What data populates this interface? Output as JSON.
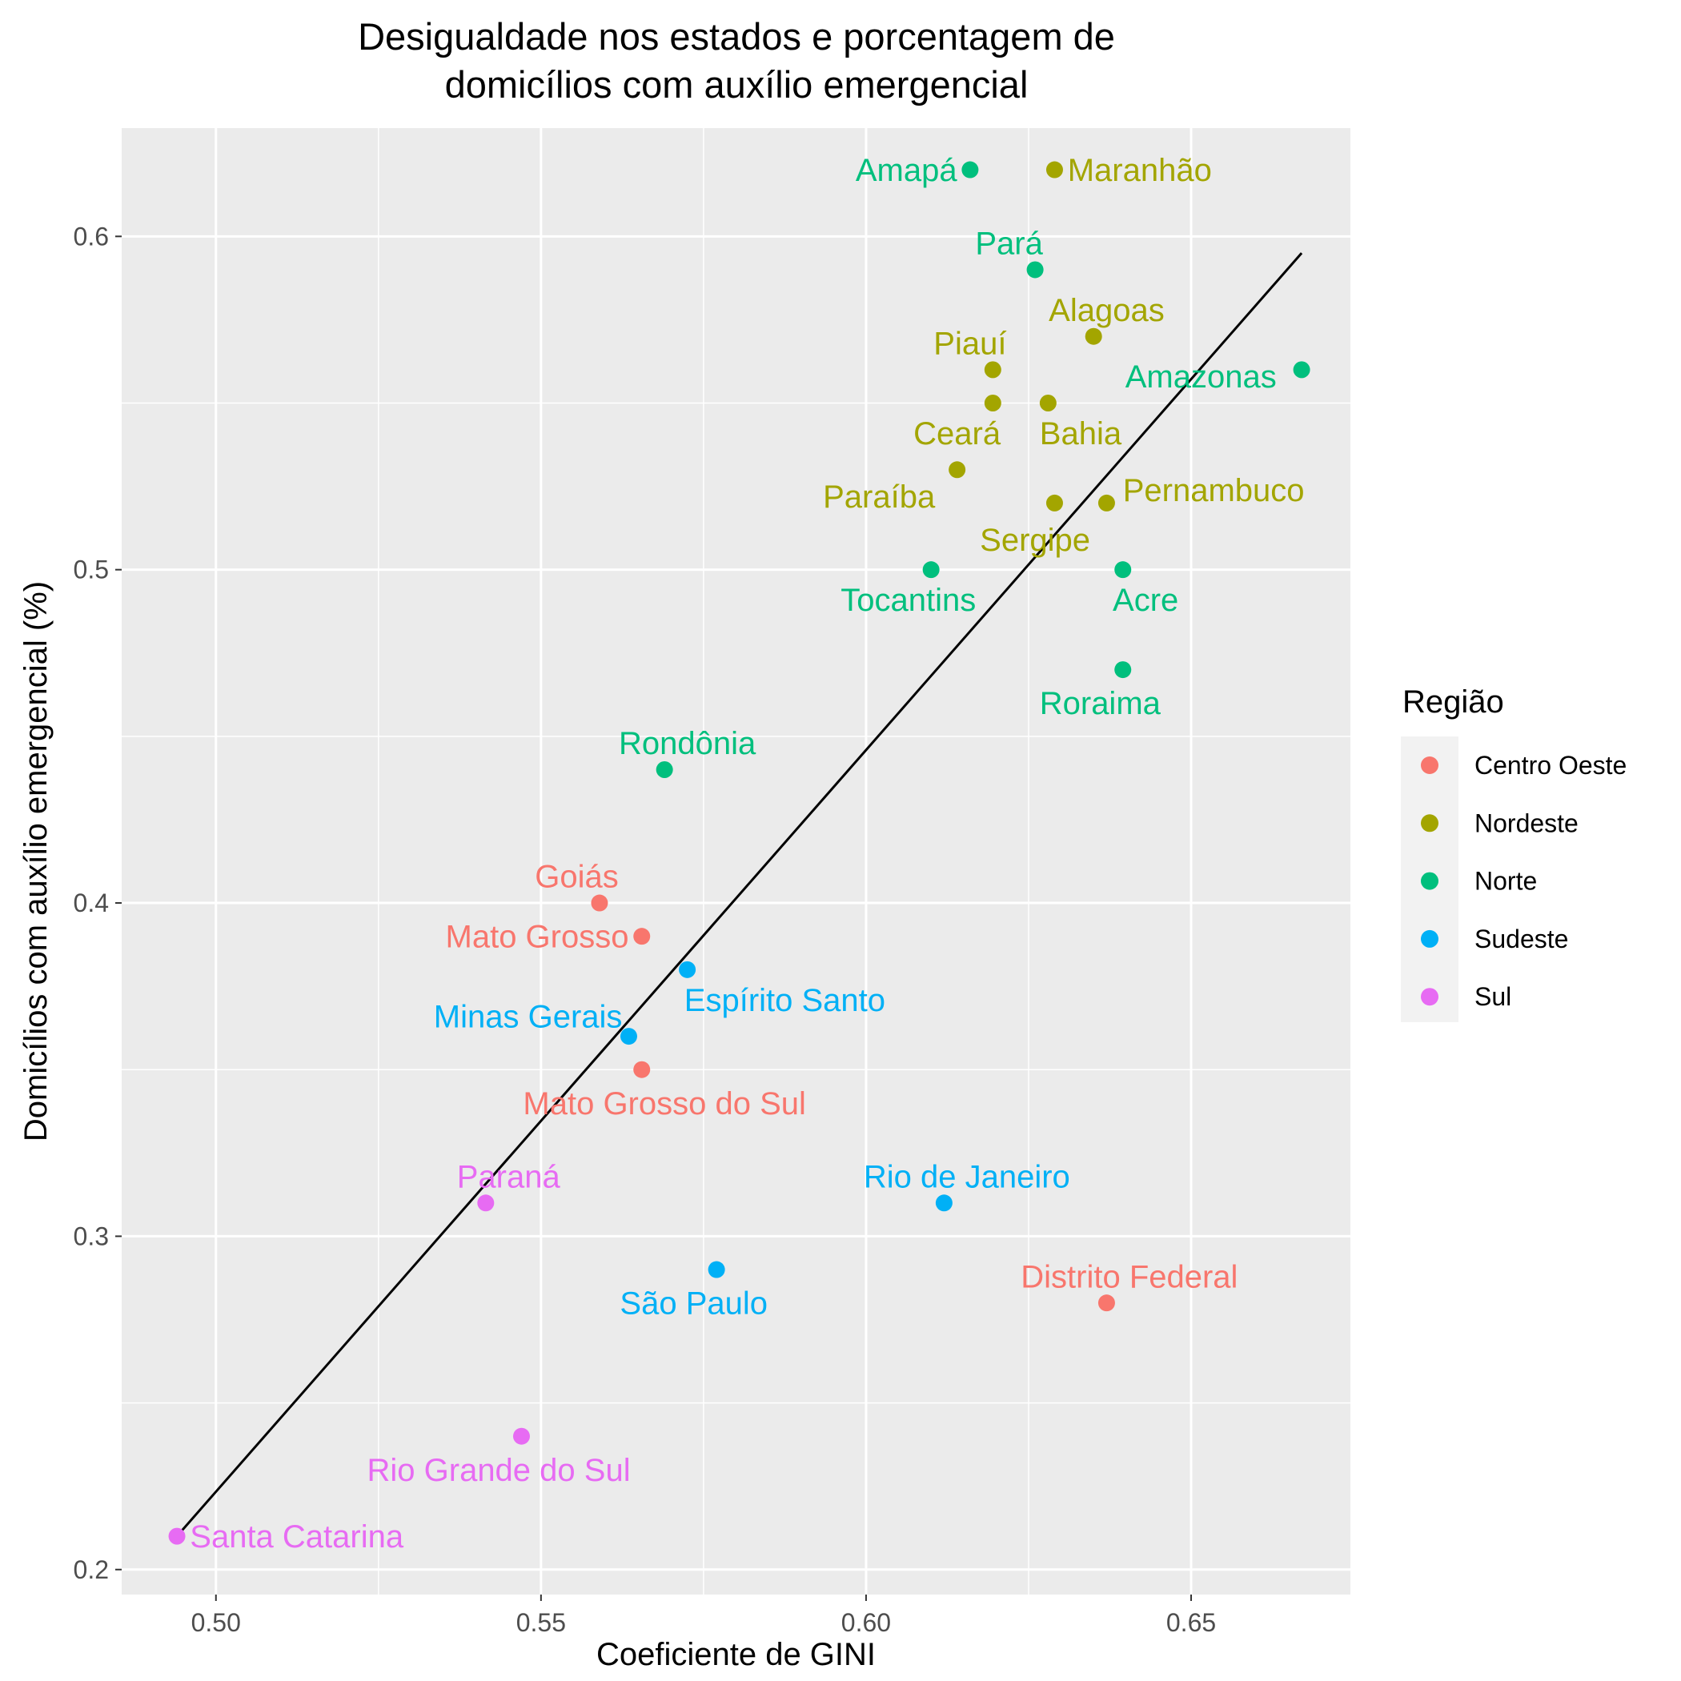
{
  "chart_data": {
    "type": "scatter",
    "title": [
      "Desigualdade nos estados e porcentagem de",
      "domicílios com auxílio emergencial"
    ],
    "xlabel": "Coeficiente de GINI",
    "ylabel": "Domicílios com auxílio emergencial (%)",
    "xlim": [
      0.4855,
      0.6745
    ],
    "ylim": [
      0.1925,
      0.6325
    ],
    "xticks": [
      0.5,
      0.55,
      0.6,
      0.65
    ],
    "xtick_labels": [
      "0.50",
      "0.55",
      "0.60",
      "0.65"
    ],
    "yticks": [
      0.2,
      0.3,
      0.4,
      0.5,
      0.6
    ],
    "ytick_labels": [
      "0.2",
      "0.3",
      "0.4",
      "0.5",
      "0.6"
    ],
    "grid": true,
    "background_color": "#ebebeb",
    "legend": {
      "title": "Região",
      "placement": "right",
      "entries": [
        {
          "name": "Centro Oeste",
          "color": "#F8766D"
        },
        {
          "name": "Nordeste",
          "color": "#A3A500"
        },
        {
          "name": "Norte",
          "color": "#00BF7D"
        },
        {
          "name": "Sudeste",
          "color": "#00B0F6"
        },
        {
          "name": "Sul",
          "color": "#E76BF3"
        }
      ]
    },
    "trend_line": {
      "x": [
        0.494,
        0.667
      ],
      "y": [
        0.21,
        0.595
      ],
      "color": "#000000"
    },
    "points": [
      {
        "label": "Amapá",
        "x": 0.616,
        "y": 0.62,
        "region": "Norte",
        "label_anchor": "end",
        "label_dx": -0.002,
        "label_dy": 0.0
      },
      {
        "label": "Maranhão",
        "x": 0.629,
        "y": 0.62,
        "region": "Nordeste",
        "label_anchor": "start",
        "label_dx": 0.002,
        "label_dy": 0.0
      },
      {
        "label": "Pará",
        "x": 0.626,
        "y": 0.59,
        "region": "Norte",
        "label_anchor": "middle",
        "label_dx": -0.004,
        "label_dy": 0.008
      },
      {
        "label": "Alagoas",
        "x": 0.635,
        "y": 0.57,
        "region": "Nordeste",
        "label_anchor": "middle",
        "label_dx": 0.002,
        "label_dy": 0.008
      },
      {
        "label": "Piauí",
        "x": 0.6195,
        "y": 0.56,
        "region": "Nordeste",
        "label_anchor": "middle",
        "label_dx": -0.0035,
        "label_dy": 0.008
      },
      {
        "label": "Amazonas",
        "x": 0.667,
        "y": 0.56,
        "region": "Norte",
        "label_anchor": "middle",
        "label_dx": -0.0155,
        "label_dy": -0.002
      },
      {
        "label": "Ceará",
        "x": 0.6195,
        "y": 0.55,
        "region": "Nordeste",
        "label_anchor": "middle",
        "label_dx": -0.0055,
        "label_dy": -0.009
      },
      {
        "label": "Bahia",
        "x": 0.628,
        "y": 0.55,
        "region": "Nordeste",
        "label_anchor": "middle",
        "label_dx": 0.005,
        "label_dy": -0.009
      },
      {
        "label": "Paraíba",
        "x": 0.614,
        "y": 0.53,
        "region": "Nordeste",
        "label_anchor": "middle",
        "label_dx": -0.012,
        "label_dy": -0.008
      },
      {
        "label": "Sergipe",
        "x": 0.629,
        "y": 0.52,
        "region": "Nordeste",
        "label_anchor": "middle",
        "label_dx": -0.003,
        "label_dy": -0.011
      },
      {
        "label": "Pernambuco",
        "x": 0.637,
        "y": 0.52,
        "region": "Nordeste",
        "label_anchor": "start",
        "label_dx": 0.0025,
        "label_dy": 0.004
      },
      {
        "label": "Tocantins",
        "x": 0.61,
        "y": 0.5,
        "region": "Norte",
        "label_anchor": "middle",
        "label_dx": -0.0035,
        "label_dy": -0.009
      },
      {
        "label": "Acre",
        "x": 0.6395,
        "y": 0.5,
        "region": "Norte",
        "label_anchor": "middle",
        "label_dx": 0.0035,
        "label_dy": -0.009
      },
      {
        "label": "Roraima",
        "x": 0.6395,
        "y": 0.47,
        "region": "Norte",
        "label_anchor": "middle",
        "label_dx": -0.0035,
        "label_dy": -0.01
      },
      {
        "label": "Rondônia",
        "x": 0.569,
        "y": 0.44,
        "region": "Norte",
        "label_anchor": "middle",
        "label_dx": 0.0035,
        "label_dy": 0.008
      },
      {
        "label": "Goiás",
        "x": 0.559,
        "y": 0.4,
        "region": "Centro Oeste",
        "label_anchor": "middle",
        "label_dx": -0.0035,
        "label_dy": 0.008
      },
      {
        "label": "Mato Grosso",
        "x": 0.5655,
        "y": 0.39,
        "region": "Centro Oeste",
        "label_anchor": "end",
        "label_dx": -0.002,
        "label_dy": 0.0
      },
      {
        "label": "Espírito Santo",
        "x": 0.5725,
        "y": 0.38,
        "region": "Sudeste",
        "label_anchor": "middle",
        "label_dx": 0.015,
        "label_dy": -0.009
      },
      {
        "label": "Minas Gerais",
        "x": 0.5635,
        "y": 0.36,
        "region": "Sudeste",
        "label_anchor": "middle",
        "label_dx": -0.0155,
        "label_dy": 0.006
      },
      {
        "label": "Mato Grosso do Sul",
        "x": 0.5655,
        "y": 0.35,
        "region": "Centro Oeste",
        "label_anchor": "middle",
        "label_dx": 0.0035,
        "label_dy": -0.01
      },
      {
        "label": "Paraná",
        "x": 0.5415,
        "y": 0.31,
        "region": "Sul",
        "label_anchor": "middle",
        "label_dx": 0.0035,
        "label_dy": 0.008
      },
      {
        "label": "Rio de Janeiro",
        "x": 0.612,
        "y": 0.31,
        "region": "Sudeste",
        "label_anchor": "middle",
        "label_dx": 0.0035,
        "label_dy": 0.008
      },
      {
        "label": "São Paulo",
        "x": 0.577,
        "y": 0.29,
        "region": "Sudeste",
        "label_anchor": "middle",
        "label_dx": -0.0035,
        "label_dy": -0.01
      },
      {
        "label": "Distrito Federal",
        "x": 0.637,
        "y": 0.28,
        "region": "Centro Oeste",
        "label_anchor": "middle",
        "label_dx": 0.0035,
        "label_dy": 0.008
      },
      {
        "label": "Rio Grande do Sul",
        "x": 0.547,
        "y": 0.24,
        "region": "Sul",
        "label_anchor": "middle",
        "label_dx": -0.0035,
        "label_dy": -0.01
      },
      {
        "label": "Santa Catarina",
        "x": 0.494,
        "y": 0.21,
        "region": "Sul",
        "label_anchor": "start",
        "label_dx": 0.002,
        "label_dy": 0.0
      }
    ]
  }
}
